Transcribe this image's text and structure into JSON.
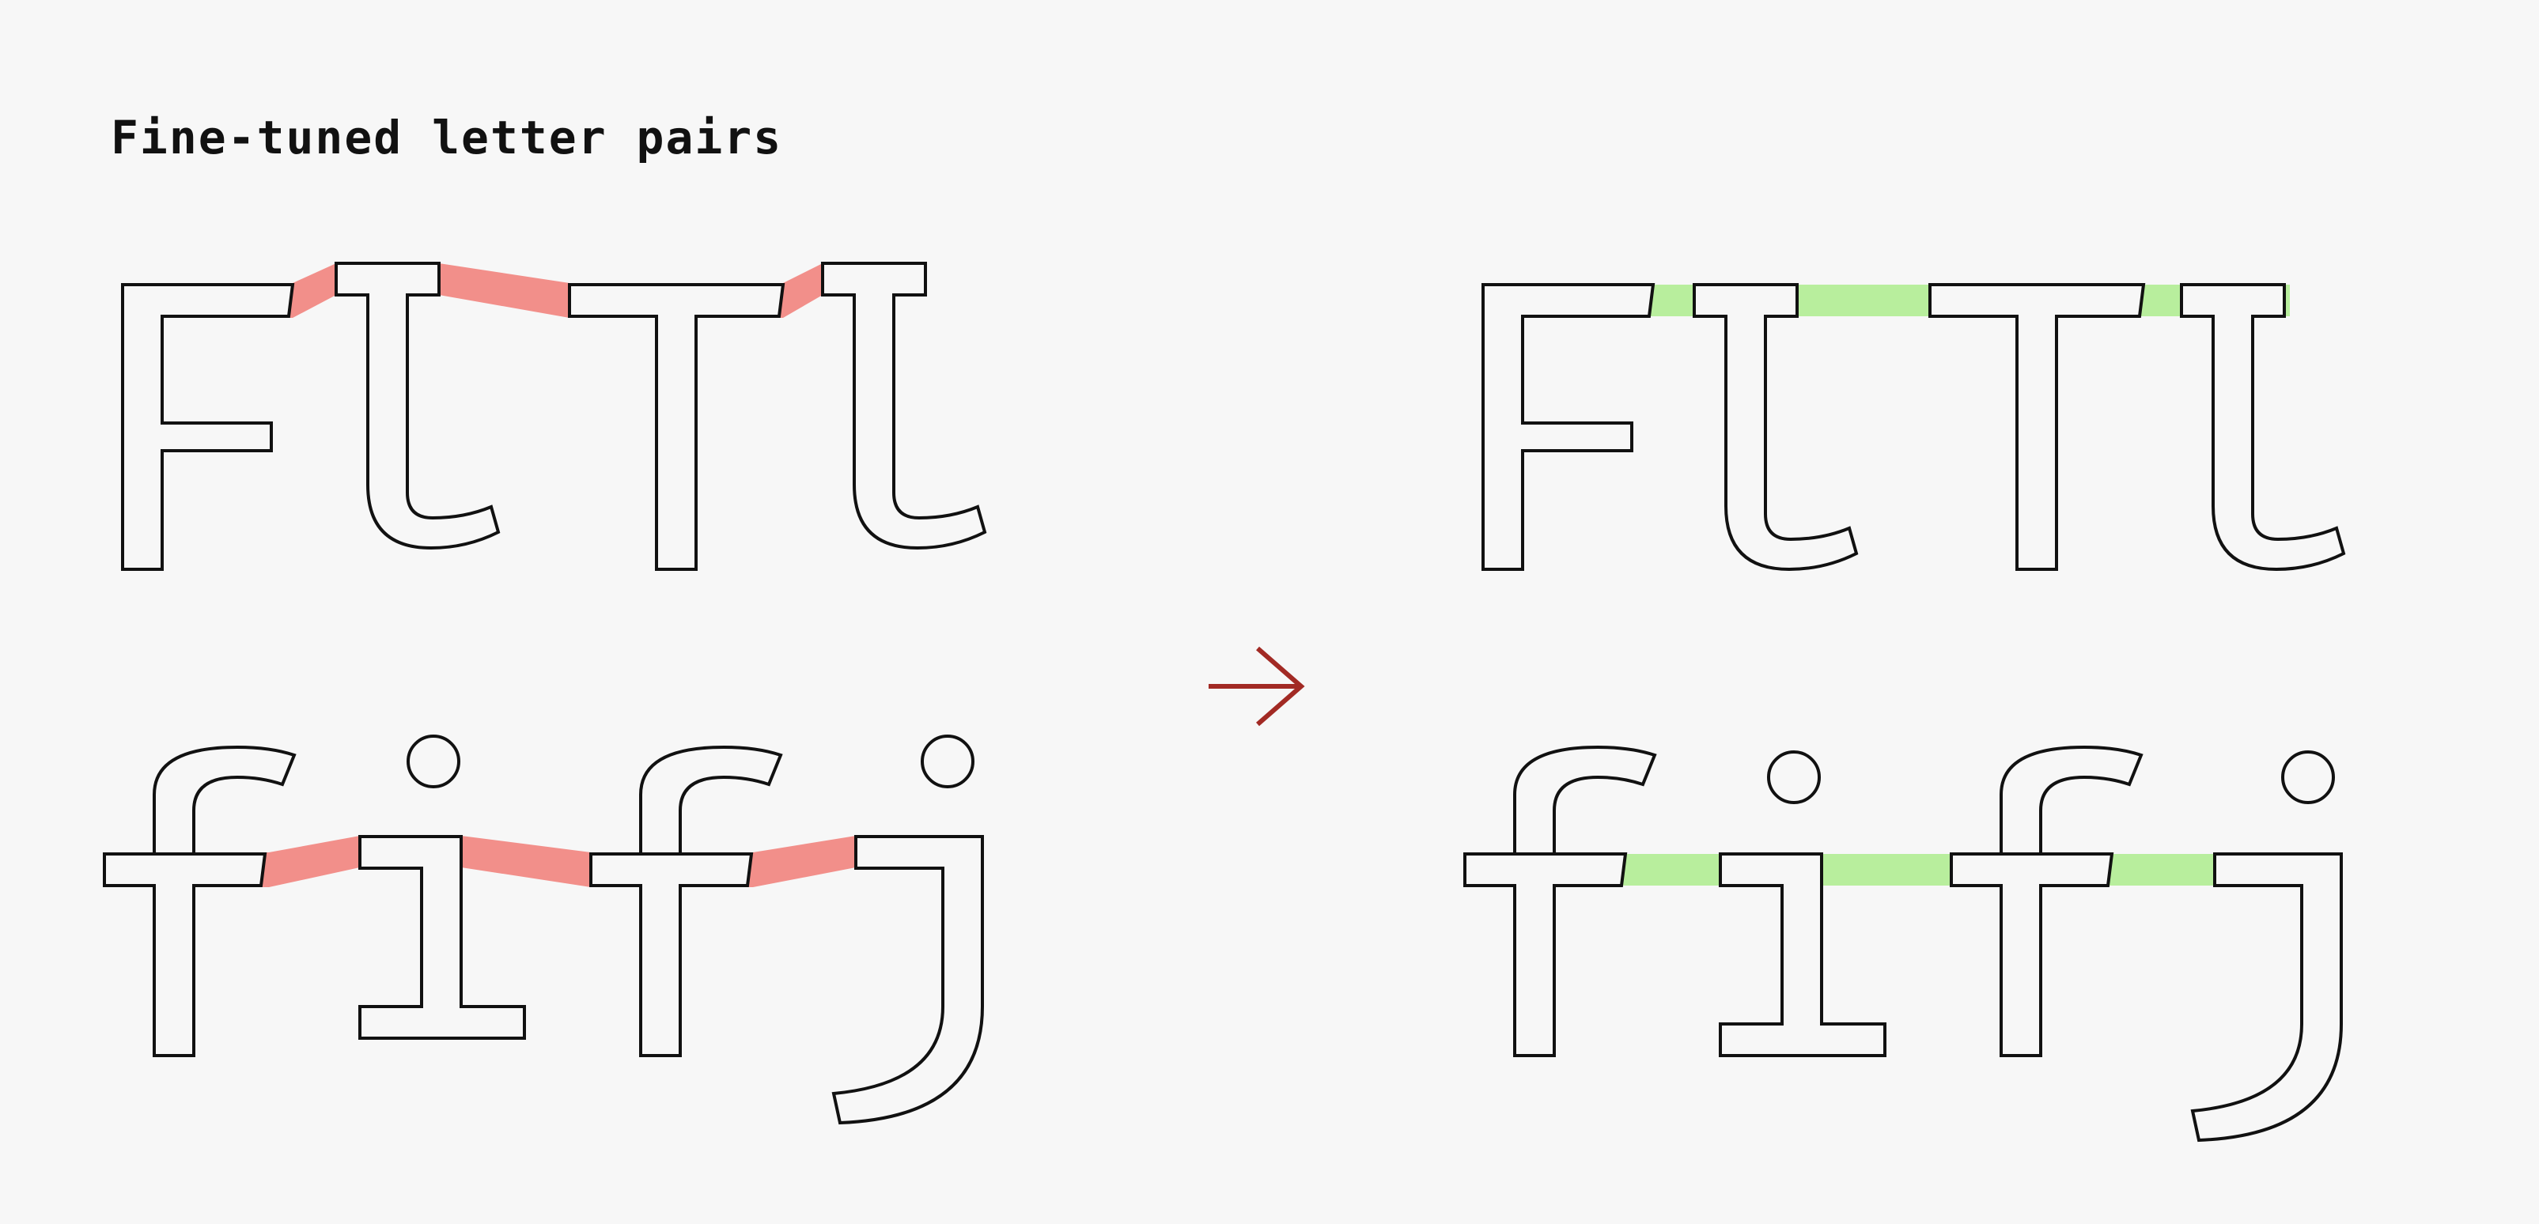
{
  "title": "Fine-tuned letter pairs",
  "colors": {
    "background": "#f7f7f7",
    "before_highlight": "#f28f8a",
    "after_highlight": "#b8ee9d",
    "arrow": "#a22a24",
    "glyph_outline": "#111111"
  },
  "panels": [
    {
      "id": "before",
      "state": "misaligned",
      "rows": [
        [
          "F",
          "l",
          "T",
          "l"
        ],
        [
          "f",
          "i",
          "f",
          "j"
        ]
      ]
    },
    {
      "id": "after",
      "state": "aligned",
      "rows": [
        [
          "F",
          "l",
          "T",
          "l"
        ],
        [
          "f",
          "i",
          "f",
          "j"
        ]
      ]
    }
  ],
  "arrow_icon": "right-arrow-icon"
}
